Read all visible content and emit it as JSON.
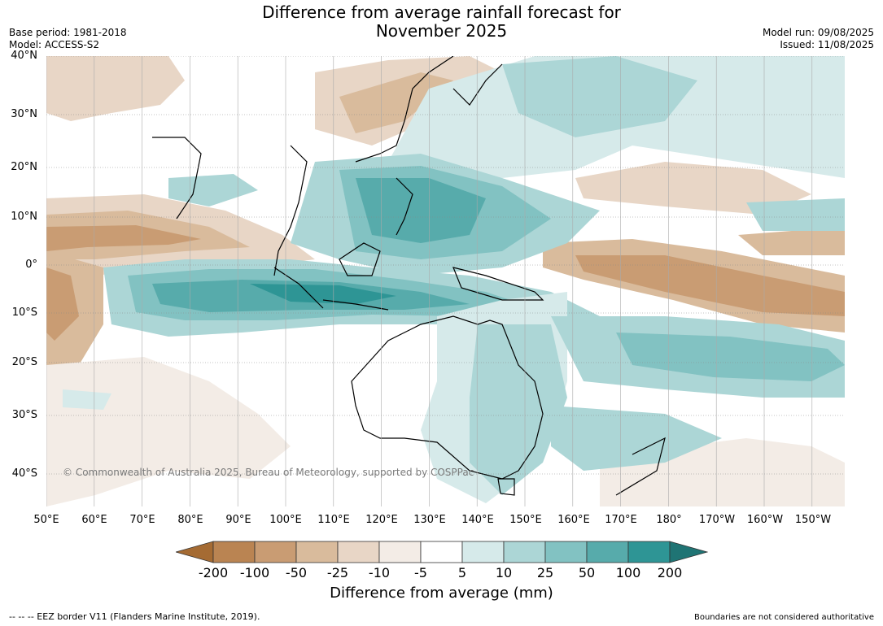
{
  "title": "Difference from average rainfall forecast for November 2025",
  "title_line1": "Difference from average rainfall forecast for",
  "title_line2": "November 2025",
  "base_period": "Base period: 1981-2018",
  "model": "Model: ACCESS-S2",
  "model_run": "Model run: 09/08/2025",
  "issued": "Issued: 11/08/2025",
  "lat_labels": [
    "40°N",
    "30°N",
    "20°N",
    "10°N",
    "0°",
    "10°S",
    "20°S",
    "30°S",
    "40°S"
  ],
  "lon_labels": [
    "50°E",
    "60°E",
    "70°E",
    "80°E",
    "90°E",
    "100°E",
    "110°E",
    "120°E",
    "130°E",
    "140°E",
    "150°E",
    "160°E",
    "170°E",
    "180°",
    "170°W",
    "160°W",
    "150°W"
  ],
  "copyright": "© Commonwealth of Australia 2025, Bureau of Meteorology, supported by COSPPac",
  "colorbar": {
    "ticks": [
      "-200",
      "-100",
      "-50",
      "-25",
      "-10",
      "-5",
      "5",
      "10",
      "25",
      "50",
      "100",
      "200"
    ],
    "colors": [
      "#a56b33",
      "#ba8452",
      "#c99c73",
      "#d9bb9c",
      "#e8d6c6",
      "#f3ece6",
      "#ffffff",
      "#d6eaea",
      "#acd6d6",
      "#82c2c2",
      "#57abab",
      "#2e9595",
      "#1f7474"
    ],
    "title": "Difference from average (mm)"
  },
  "legend_note": "--  --  -- EEZ border V11 (Flanders Marine Institute, 2019).",
  "boundaries_note": "Boundaries are not considered authoritative",
  "colors": {
    "very_dry": "#a56b33",
    "dry": "#c99c73",
    "slightly_dry": "#e8d6c6",
    "neutral": "#ffffff",
    "slightly_wet": "#d6eaea",
    "wet": "#82c2c2",
    "very_wet": "#2e9595"
  }
}
